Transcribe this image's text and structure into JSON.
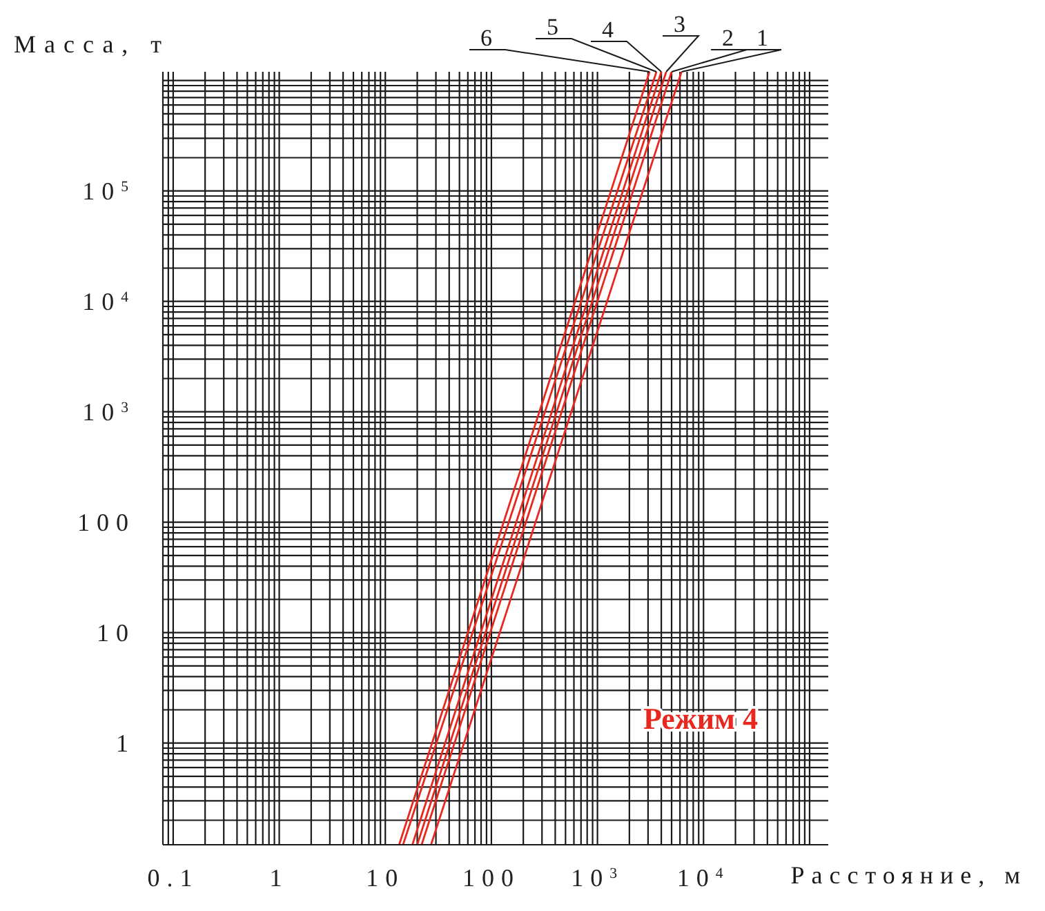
{
  "chart_data": {
    "type": "line",
    "xlabel": "Расстояние, м",
    "ylabel": "Масса, т",
    "log": "xy",
    "grid": true,
    "marker": "none",
    "line_style": "solid",
    "xlim": [
      0.08,
      150000
    ],
    "ylim": [
      0.12,
      1200000
    ],
    "xticks": [
      0.1,
      1,
      10,
      100,
      {
        "value": 1000,
        "label": "10$^{3}$"
      },
      {
        "value": 10000,
        "label": "10$^{4}$"
      }
    ],
    "yticks": [
      1,
      10,
      100,
      {
        "value": 1000,
        "label": "10$^{3}$"
      },
      {
        "value": 10000,
        "label": "10$^{4}$"
      },
      {
        "value": 100000,
        "label": "10$^{5}$"
      }
    ],
    "series": [
      {
        "name": "1",
        "color": "#e8281e",
        "x": [
          27,
          6200
        ],
        "values": [
          0.12,
          1200000
        ]
      },
      {
        "name": "2",
        "color": "#e8281e",
        "x": [
          22,
          5000
        ],
        "values": [
          0.12,
          1200000
        ]
      },
      {
        "name": "3",
        "color": "#e8281e",
        "x": [
          20,
          4450
        ],
        "values": [
          0.12,
          1200000
        ]
      },
      {
        "name": "4",
        "color": "#e8281e",
        "x": [
          18,
          4000
        ],
        "values": [
          0.12,
          1200000
        ]
      },
      {
        "name": "5",
        "color": "#e8281e",
        "x": [
          14.7,
          3600
        ],
        "values": [
          0.12,
          1200000
        ]
      },
      {
        "name": "6",
        "color": "#e8281e",
        "x": [
          13.5,
          3100
        ],
        "values": [
          0.12,
          1200000
        ]
      }
    ],
    "annotations": [
      "Режим 4"
    ]
  }
}
